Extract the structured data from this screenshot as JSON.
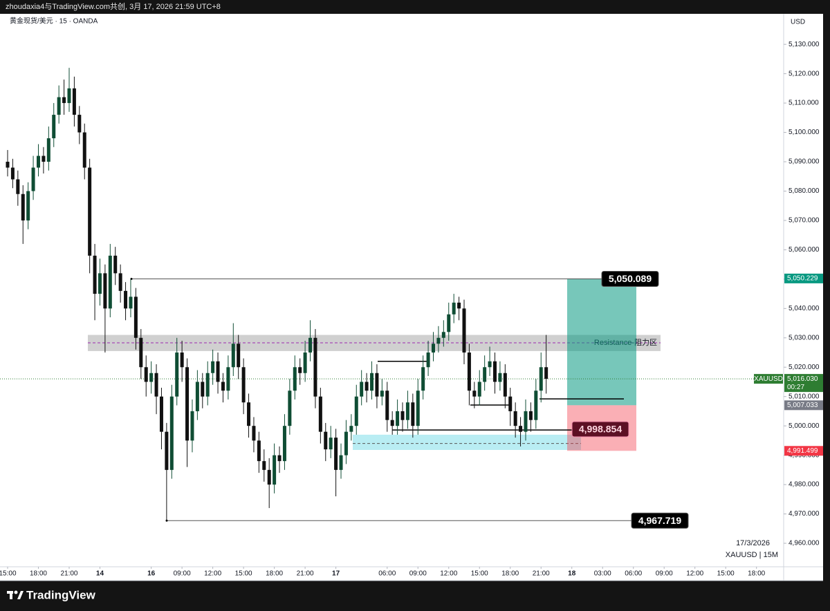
{
  "header": "zhoudaxia4与TradingView.com共创, 3月 17, 2026 21:59 UTC+8",
  "footer": "TradingView",
  "chart_data": {
    "type": "candlestick",
    "title": "黄金现货/美元 · 15 · OANDA",
    "currency": "USD",
    "symbol": "XAUUSD",
    "countdown": "00:27",
    "date": "17/3/2026",
    "interval_label": "XAUUSD | 15M",
    "up_color": "#0f4d34",
    "down_color": "#111111",
    "open": [
      5090,
      5088,
      5084,
      5079,
      5070,
      5080,
      5088,
      5092,
      5090,
      5098,
      5106,
      5112,
      5110,
      5115,
      5106,
      5100,
      5088,
      5058,
      5045,
      5052,
      5040,
      5058,
      5052,
      5046,
      5040,
      5044,
      5030,
      5020,
      5015,
      5018,
      5010,
      4998,
      4985,
      5010,
      5025,
      5020,
      4995,
      5005,
      5015,
      5010,
      5018,
      5022,
      5015,
      5012,
      5020,
      5028,
      5020,
      5008,
      5000,
      4995,
      4988,
      4985,
      4980,
      4990,
      4988,
      5000,
      5012,
      5020,
      5018,
      5025,
      5030,
      5010,
      4998,
      4992,
      4996,
      4985,
      4990,
      4998,
      5000,
      5010,
      5015,
      5012,
      5018,
      5010,
      5012,
      5002,
      5000,
      5005,
      5002,
      5008,
      5000,
      5012,
      5020,
      5025,
      5028,
      5030,
      5032,
      5038,
      5042,
      5040,
      5025,
      5012,
      5010,
      5015,
      5020,
      5022,
      5015,
      5018,
      5010,
      5005,
      5000,
      4998,
      5005,
      5002,
      5012,
      5020
    ],
    "high": [
      5094,
      5091,
      5087,
      5082,
      5083,
      5092,
      5096,
      5095,
      5102,
      5110,
      5116,
      5118,
      5122,
      5119,
      5109,
      5103,
      5091,
      5062,
      5057,
      5055,
      5062,
      5061,
      5055,
      5049,
      5050,
      5047,
      5033,
      5024,
      5022,
      5021,
      5013,
      5001,
      5014,
      5030,
      5029,
      5023,
      5009,
      5019,
      5018,
      5022,
      5026,
      5025,
      5018,
      5024,
      5035,
      5031,
      5023,
      5011,
      5003,
      4998,
      4992,
      4989,
      4994,
      4993,
      5004,
      5016,
      5024,
      5023,
      5029,
      5036,
      5033,
      5013,
      5001,
      5000,
      4999,
      4994,
      5002,
      5004,
      5014,
      5019,
      5018,
      5022,
      5021,
      5016,
      5015,
      5005,
      5009,
      5008,
      5012,
      5011,
      5016,
      5024,
      5029,
      5032,
      5034,
      5036,
      5042,
      5045,
      5044,
      5043,
      5028,
      5015,
      5019,
      5024,
      5027,
      5025,
      5022,
      5021,
      5013,
      5008,
      5003,
      5009,
      5008,
      5016,
      5025,
      5031
    ],
    "low": [
      5085,
      5081,
      5075,
      5062,
      5067,
      5077,
      5085,
      5086,
      5087,
      5095,
      5103,
      5106,
      5107,
      5102,
      5096,
      5084,
      5052,
      5036,
      5041,
      5025,
      5037,
      5048,
      5042,
      5036,
      5037,
      5026,
      5016,
      5010,
      5011,
      5004,
      4992,
      4968,
      4982,
      5007,
      5015,
      4986,
      4991,
      5002,
      5006,
      5007,
      5014,
      5011,
      5008,
      5009,
      5017,
      5016,
      5004,
      4996,
      4991,
      4984,
      4981,
      4972,
      4977,
      4984,
      4985,
      4997,
      5009,
      5014,
      5015,
      5022,
      5006,
      4994,
      4988,
      4989,
      4976,
      4982,
      4987,
      4995,
      4997,
      5007,
      5008,
      5009,
      5006,
      5007,
      4998,
      4997,
      4997,
      4998,
      4999,
      4996,
      4997,
      5009,
      5017,
      5022,
      5025,
      5027,
      5029,
      5035,
      5036,
      5021,
      5007,
      5006,
      5007,
      5012,
      5017,
      5011,
      5012,
      5006,
      5000,
      4996,
      4993,
      4995,
      4998,
      4999,
      5008,
      5011
    ],
    "close": [
      5088,
      5084,
      5079,
      5070,
      5080,
      5088,
      5092,
      5090,
      5098,
      5106,
      5112,
      5110,
      5115,
      5106,
      5100,
      5088,
      5058,
      5045,
      5052,
      5040,
      5058,
      5052,
      5046,
      5040,
      5044,
      5030,
      5020,
      5015,
      5018,
      5010,
      4998,
      4985,
      5010,
      5025,
      5020,
      4995,
      5005,
      5015,
      5010,
      5018,
      5022,
      5015,
      5012,
      5020,
      5028,
      5020,
      5008,
      5000,
      4995,
      4988,
      4985,
      4980,
      4990,
      4988,
      5000,
      5012,
      5020,
      5018,
      5025,
      5030,
      5010,
      4998,
      4992,
      4996,
      4985,
      4990,
      4998,
      5000,
      5010,
      5015,
      5012,
      5018,
      5010,
      5012,
      5002,
      5000,
      5005,
      5002,
      5008,
      5000,
      5012,
      5020,
      5025,
      5028,
      5030,
      5032,
      5038,
      5042,
      5040,
      5025,
      5012,
      5010,
      5015,
      5020,
      5022,
      5015,
      5018,
      5010,
      5005,
      5000,
      4998,
      5005,
      5002,
      5012,
      5020,
      5016.03
    ],
    "xlim": [
      -1.483,
      151.3
    ],
    "xticks": [
      {
        "value": 0,
        "label": "15:00"
      },
      {
        "value": 6,
        "label": "18:00"
      },
      {
        "value": 12,
        "label": "21:00"
      },
      {
        "value": 18,
        "label": "14"
      },
      {
        "value": 28,
        "label": "16"
      },
      {
        "value": 34,
        "label": "09:00"
      },
      {
        "value": 40,
        "label": "12:00"
      },
      {
        "value": 46,
        "label": "15:00"
      },
      {
        "value": 52,
        "label": "18:00"
      },
      {
        "value": 58,
        "label": "21:00"
      },
      {
        "value": 64,
        "label": "17"
      },
      {
        "value": 74,
        "label": "06:00"
      },
      {
        "value": 80,
        "label": "09:00"
      },
      {
        "value": 86,
        "label": "12:00"
      },
      {
        "value": 92,
        "label": "15:00"
      },
      {
        "value": 98,
        "label": "18:00"
      },
      {
        "value": 104,
        "label": "21:00"
      },
      {
        "value": 110,
        "label": "18"
      },
      {
        "value": 116,
        "label": "03:00"
      },
      {
        "value": 122,
        "label": "06:00"
      },
      {
        "value": 128,
        "label": "09:00"
      },
      {
        "value": 134,
        "label": "12:00"
      },
      {
        "value": 140,
        "label": "15:00"
      },
      {
        "value": 146,
        "label": "18:00"
      }
    ],
    "ylim": [
      4952,
      5140.4
    ],
    "yticks": [
      {
        "value": 4960,
        "label": "4,960.000"
      },
      {
        "value": 4970,
        "label": "4,970.000"
      },
      {
        "value": 4980,
        "label": "4,980.000"
      },
      {
        "value": 4990,
        "label": "4,990.000"
      },
      {
        "value": 5000,
        "label": "5,000.000"
      },
      {
        "value": 5010,
        "label": "5,010.000"
      },
      {
        "value": 5020,
        "label": "5,020.000"
      },
      {
        "value": 5030,
        "label": "5,030.000"
      },
      {
        "value": 5040,
        "label": "5,040.000"
      },
      {
        "value": 5050,
        "label": "5,050.000"
      },
      {
        "value": 5060,
        "label": "5,060.000"
      },
      {
        "value": 5070,
        "label": "5,070.000"
      },
      {
        "value": 5080,
        "label": "5,080.000"
      },
      {
        "value": 5090,
        "label": "5,090.000"
      },
      {
        "value": 5100,
        "label": "5,100.000"
      },
      {
        "value": 5110,
        "label": "5,110.000"
      },
      {
        "value": 5120,
        "label": "5,120.000"
      },
      {
        "value": 5130,
        "label": "5,130.000"
      }
    ],
    "price_labels": [
      {
        "value": 5050.229,
        "label": "5,050.229",
        "color": "#089981"
      },
      {
        "value": 5016.03,
        "label": "5,016.030",
        "color": "#2e7d32"
      },
      {
        "value": 5007.033,
        "label": "5,007.033",
        "color": "#787b86"
      },
      {
        "value": 4991.499,
        "label": "4,991.499",
        "color": "#f23645"
      }
    ],
    "levels": [
      {
        "value": 5050.089,
        "label": "5,050.089"
      },
      {
        "value": 4967.719,
        "label": "4,967.719"
      }
    ],
    "stop_label": {
      "value": 4998.854,
      "label": "4,998.854"
    },
    "resistance": {
      "low": 5025.5,
      "high": 5031,
      "mid": 5028.3,
      "label": "Resistance-阻力区"
    },
    "support_zone": {
      "low": 4991.8,
      "high": 4997,
      "mid": 4994
    },
    "position": {
      "target": 5050.229,
      "entry": 5007.033,
      "stop": 4991.499
    },
    "drawn_lines": [
      5022,
      5007.1,
      4998.6,
      5009.2
    ]
  }
}
